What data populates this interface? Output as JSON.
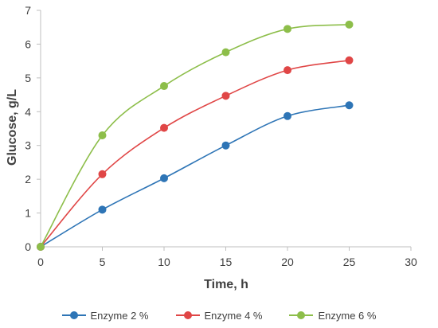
{
  "chart_data": {
    "type": "line",
    "xlabel": "Time, h",
    "ylabel": "Glucose, g/L",
    "xlim": [
      0,
      30
    ],
    "ylim": [
      0,
      7
    ],
    "x_ticks": [
      0,
      5,
      10,
      15,
      20,
      25,
      30
    ],
    "y_ticks": [
      0,
      1,
      2,
      3,
      4,
      5,
      6,
      7
    ],
    "grid": false,
    "legend_position": "bottom",
    "smoothed": true,
    "series": [
      {
        "name": "Enzyme 2 %",
        "color": "#2E75B6",
        "x": [
          0,
          5,
          10,
          15,
          20,
          25
        ],
        "y": [
          0,
          1.1,
          2.03,
          3.0,
          3.87,
          4.19
        ]
      },
      {
        "name": "Enzyme 4 %",
        "color": "#E04646",
        "x": [
          0,
          5,
          10,
          15,
          20,
          25
        ],
        "y": [
          0,
          2.15,
          3.52,
          4.47,
          5.23,
          5.52
        ]
      },
      {
        "name": "Enzyme 6 %",
        "color": "#8DBE4A",
        "x": [
          0,
          5,
          10,
          15,
          20,
          25
        ],
        "y": [
          0,
          3.3,
          4.76,
          5.76,
          6.45,
          6.58
        ]
      }
    ]
  }
}
